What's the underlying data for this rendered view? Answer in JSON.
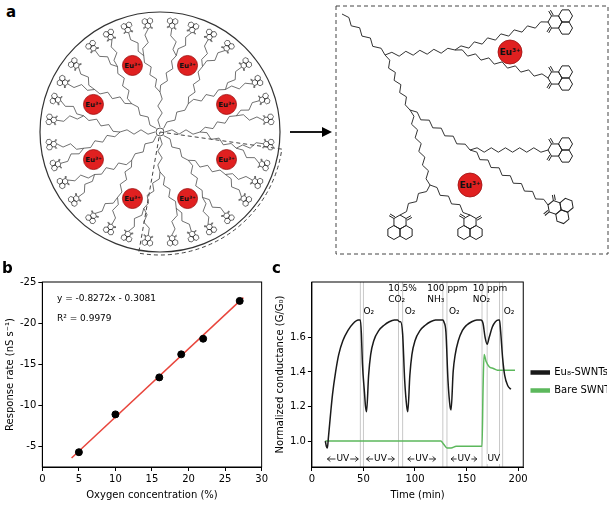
{
  "diagram": {
    "label": "a",
    "overview_ions": [
      "Eu³⁺",
      "Eu³⁺",
      "Eu³⁺",
      "Eu³⁺",
      "Eu³⁺",
      "Eu³⁺",
      "Eu³⁺",
      "Eu³⁺"
    ],
    "detail_ions": [
      "Eu³⁺",
      "Eu³⁺"
    ]
  },
  "chart_data": [
    {
      "type": "scatter",
      "title": "b",
      "x_label": "Oxygen concentration (%)",
      "y_label": "Response rate (nS s⁻¹)",
      "xlim": [
        0,
        30
      ],
      "xticks": [
        0,
        5,
        10,
        15,
        20,
        25,
        30
      ],
      "ylim": [
        -2.5,
        -25
      ],
      "yticks": [
        -25,
        -20,
        -15,
        -10,
        -5
      ],
      "grid": false,
      "series": [
        {
          "type": "scatter",
          "marker": "circle",
          "color": "#000000",
          "x": [
            5,
            10,
            16,
            19,
            22,
            27
          ],
          "values": [
            -4.3,
            -8.9,
            -13.4,
            -16.2,
            -18.1,
            -22.7
          ]
        },
        {
          "type": "line",
          "line_style": "solid",
          "color": "#e8453c",
          "x": [
            4,
            27.5
          ],
          "values": [
            -3.6,
            -23.1
          ]
        }
      ],
      "annotations": [
        {
          "text": "y = -0.8272x - 0.3081",
          "x": 2,
          "y": -23
        },
        {
          "text": "R² = 0.9979",
          "x": 2,
          "y": -20.5
        }
      ]
    },
    {
      "type": "line",
      "title": "c",
      "x_label": "Time (min)",
      "y_label": "Normalized conductance (G/G₀)",
      "xlim": [
        0,
        205
      ],
      "xticks": [
        0,
        50,
        100,
        150,
        200
      ],
      "ylim": [
        0.85,
        1.92
      ],
      "yticks": [
        {
          "value": 1,
          "label": "1.0"
        },
        {
          "value": 1.2,
          "label": "1.2"
        },
        {
          "value": 1.4,
          "label": "1.4"
        },
        {
          "value": 1.6,
          "label": "1.6"
        }
      ],
      "grid": false,
      "legend": "right",
      "series": [
        {
          "name": "Eu₈-SWNTs",
          "color": "#1a1a1a",
          "line_style": "solid",
          "x": [
            13,
            14,
            15,
            16,
            18,
            20,
            23,
            26,
            30,
            35,
            40,
            45,
            47,
            48,
            49,
            51,
            52,
            53,
            55,
            57,
            60,
            65,
            70,
            75,
            80,
            83,
            85,
            86,
            88,
            90,
            92,
            93,
            95,
            97,
            100,
            105,
            110,
            115,
            120,
            125,
            127,
            128,
            130,
            132,
            134,
            135,
            137,
            139,
            142,
            146,
            150,
            155,
            160,
            164,
            166,
            168,
            170,
            172,
            175,
            178,
            181,
            182,
            183,
            185,
            187,
            190,
            193
          ],
          "values": [
            1.0,
            0.97,
            0.96,
            1.02,
            1.15,
            1.27,
            1.4,
            1.5,
            1.58,
            1.64,
            1.68,
            1.7,
            1.7,
            1.62,
            1.45,
            1.28,
            1.2,
            1.17,
            1.38,
            1.5,
            1.58,
            1.64,
            1.67,
            1.69,
            1.7,
            1.7,
            1.69,
            1.69,
            1.62,
            1.35,
            1.2,
            1.17,
            1.38,
            1.5,
            1.58,
            1.64,
            1.67,
            1.69,
            1.7,
            1.7,
            1.7,
            1.69,
            1.63,
            1.35,
            1.2,
            1.18,
            1.4,
            1.5,
            1.58,
            1.64,
            1.67,
            1.69,
            1.7,
            1.7,
            1.68,
            1.6,
            1.56,
            1.6,
            1.66,
            1.69,
            1.7,
            1.7,
            1.64,
            1.48,
            1.38,
            1.32,
            1.3
          ]
        },
        {
          "name": "Bare SWNTs",
          "color": "#5cb85c",
          "line_style": "solid",
          "x": [
            13,
            50,
            100,
            125,
            128,
            131,
            135,
            140,
            150,
            160,
            165,
            166,
            167,
            169,
            172,
            176,
            180,
            190,
            197
          ],
          "values": [
            1.0,
            1.0,
            1.0,
            1.0,
            0.98,
            0.96,
            0.96,
            0.97,
            0.97,
            0.97,
            0.97,
            1.3,
            1.5,
            1.46,
            1.43,
            1.42,
            1.41,
            1.41,
            1.41
          ]
        }
      ],
      "uv_periods": [
        {
          "start": 15,
          "end": 45,
          "label": "UV"
        },
        {
          "start": 53,
          "end": 80,
          "label": "UV"
        },
        {
          "start": 93,
          "end": 120,
          "label": "UV"
        },
        {
          "start": 135,
          "end": 160,
          "label": "UV"
        },
        {
          "start": 172,
          "end": 181,
          "label": "UV"
        }
      ],
      "event_lines": [
        47,
        50,
        84,
        88,
        127,
        131,
        165,
        170,
        182,
        185
      ],
      "annotations": [
        {
          "text": "O₂",
          "x": 50,
          "y": 1.75
        },
        {
          "text": "10.5%\nCO₂",
          "x": 74,
          "y": 1.88
        },
        {
          "text": "O₂",
          "x": 90,
          "y": 1.75
        },
        {
          "text": "100 ppm\nNH₃",
          "x": 112,
          "y": 1.88
        },
        {
          "text": "O₂",
          "x": 133,
          "y": 1.75
        },
        {
          "text": "10 ppm\nNO₂",
          "x": 156,
          "y": 1.88
        },
        {
          "text": "O₂",
          "x": 186,
          "y": 1.75
        }
      ]
    }
  ]
}
